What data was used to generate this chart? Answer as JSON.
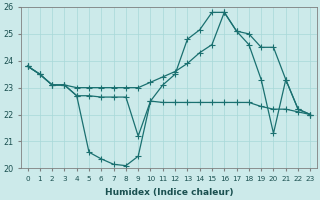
{
  "xlabel": "Humidex (Indice chaleur)",
  "bg_color": "#cceaea",
  "grid_color": "#a8d8d8",
  "line_color": "#1a7070",
  "xlim": [
    -0.5,
    23.5
  ],
  "ylim": [
    20,
    26
  ],
  "yticks": [
    20,
    21,
    22,
    23,
    24,
    25,
    26
  ],
  "xticks": [
    0,
    1,
    2,
    3,
    4,
    5,
    6,
    7,
    8,
    9,
    10,
    11,
    12,
    13,
    14,
    15,
    16,
    17,
    18,
    19,
    20,
    21,
    22,
    23
  ],
  "line1_x": [
    0,
    1,
    2,
    3,
    4,
    5,
    6,
    7,
    8,
    9,
    10,
    11,
    12,
    13,
    14,
    15,
    16,
    17,
    18,
    19,
    20,
    21,
    22,
    23
  ],
  "line1_y": [
    23.8,
    23.5,
    23.1,
    23.1,
    22.7,
    20.6,
    20.35,
    20.15,
    20.1,
    20.45,
    22.5,
    23.1,
    23.5,
    24.8,
    25.15,
    25.8,
    25.8,
    25.1,
    24.6,
    23.3,
    21.3,
    23.3,
    22.2,
    22.0
  ],
  "line2_x": [
    0,
    1,
    2,
    3,
    4,
    5,
    6,
    7,
    8,
    9,
    10,
    11,
    12,
    13,
    14,
    15,
    16,
    17,
    18,
    19,
    20,
    21,
    22,
    23
  ],
  "line2_y": [
    23.8,
    23.5,
    23.1,
    23.1,
    23.0,
    23.0,
    23.0,
    23.0,
    23.0,
    23.0,
    23.2,
    23.4,
    23.6,
    23.9,
    24.3,
    24.6,
    25.8,
    25.1,
    25.0,
    24.5,
    24.5,
    23.3,
    22.2,
    22.0
  ],
  "line3_x": [
    0,
    1,
    2,
    3,
    4,
    5,
    6,
    7,
    8,
    9,
    10,
    11,
    12,
    13,
    14,
    15,
    16,
    17,
    18,
    19,
    20,
    21,
    22,
    23
  ],
  "line3_y": [
    23.8,
    23.5,
    23.1,
    23.1,
    22.7,
    22.7,
    22.65,
    22.65,
    22.65,
    21.2,
    22.5,
    22.45,
    22.45,
    22.45,
    22.45,
    22.45,
    22.45,
    22.45,
    22.45,
    22.3,
    22.2,
    22.2,
    22.1,
    22.0
  ]
}
